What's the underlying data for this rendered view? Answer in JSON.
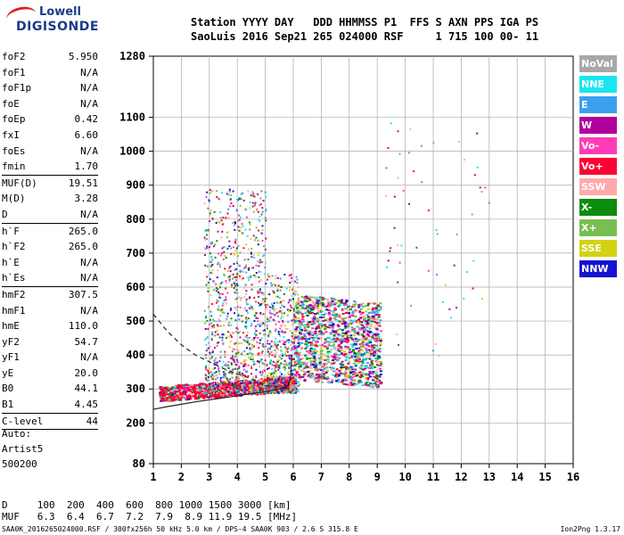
{
  "logo": {
    "line1": "Lowell",
    "line2": "DIGISONDE"
  },
  "header": {
    "row1": "Station YYYY DAY   DDD HHMMSS P1  FFS S AXN PPS IGA PS",
    "row2": "SaoLuis 2016 Sep21 265 024000 RSF     1 715 100 00- 11"
  },
  "params": [
    {
      "k": "foF2",
      "v": "5.950"
    },
    {
      "k": "foF1",
      "v": "N/A"
    },
    {
      "k": "foF1p",
      "v": "N/A"
    },
    {
      "k": "foE",
      "v": "N/A"
    },
    {
      "k": "foEp",
      "v": "0.42"
    },
    {
      "k": "fxI",
      "v": "6.60"
    },
    {
      "k": "foEs",
      "v": "N/A"
    },
    {
      "k": "fmin",
      "v": "1.70"
    },
    {
      "sep": true
    },
    {
      "k": "MUF(D)",
      "v": "19.51"
    },
    {
      "k": "M(D)",
      "v": "3.28"
    },
    {
      "k": "D",
      "v": "N/A"
    },
    {
      "sep": true
    },
    {
      "k": "h`F",
      "v": "265.0"
    },
    {
      "k": "h`F2",
      "v": "265.0"
    },
    {
      "k": "h`E",
      "v": "N/A"
    },
    {
      "k": "h`Es",
      "v": "N/A"
    },
    {
      "sep": true
    },
    {
      "k": "hmF2",
      "v": "307.5"
    },
    {
      "k": "hmF1",
      "v": "N/A"
    },
    {
      "k": "hmE",
      "v": "110.0"
    },
    {
      "k": "yF2",
      "v": "54.7"
    },
    {
      "k": "yF1",
      "v": "N/A"
    },
    {
      "k": "yE",
      "v": "20.0"
    },
    {
      "k": "B0",
      "v": "44.1"
    },
    {
      "k": "B1",
      "v": "4.45"
    },
    {
      "sep": true
    },
    {
      "k": "C-level",
      "v": "44"
    },
    {
      "sep": true
    }
  ],
  "auto": {
    "l1": "Auto:",
    "l2": "Artist5",
    "l3": "500200"
  },
  "legend": [
    {
      "label": "NoVal",
      "color": "#a8a8a8"
    },
    {
      "label": "NNE",
      "color": "#19e6f0"
    },
    {
      "label": "E",
      "color": "#3aa0f0"
    },
    {
      "label": "W",
      "color": "#b0009c"
    },
    {
      "label": "Vo-",
      "color": "#ff3cb4"
    },
    {
      "label": "Vo+",
      "color": "#ff0032"
    },
    {
      "label": "SSW",
      "color": "#ffaaaa"
    },
    {
      "label": "X-",
      "color": "#0c8c0c"
    },
    {
      "label": "X+",
      "color": "#78be50"
    },
    {
      "label": "SSE",
      "color": "#d2d214"
    },
    {
      "label": "NNW",
      "color": "#1414d2"
    }
  ],
  "table": {
    "row1": "D     100  200  400  600  800 1000 1500 3000 [km]",
    "row2": "MUF   6.3  6.4  6.7  7.2  7.9  8.9 11.9 19.5 [MHz]"
  },
  "footer": "SAA0K_2016265024000.RSF / 300fx256h 50 kHz 5.0 km / DPS-4 SAA0K 903 / 2.6 S 315.8 E",
  "version": "Ion2Png 1.3.17",
  "chart_data": {
    "type": "scatter",
    "x_ticks": [
      1,
      2,
      3,
      4,
      5,
      6,
      7,
      8,
      9,
      10,
      11,
      12,
      13,
      14,
      15,
      16
    ],
    "y_ticks": [
      80,
      200,
      300,
      400,
      500,
      600,
      700,
      800,
      900,
      1000,
      1100,
      1280
    ],
    "xlim": [
      1,
      16
    ],
    "ylim": [
      80,
      1280
    ],
    "grid": true,
    "trace_lines": [
      {
        "style": "solid",
        "x": [
          1.0,
          1.5,
          2.0,
          2.5,
          3.0,
          3.5,
          4.0,
          4.5,
          5.0,
          5.5,
          5.8,
          5.9,
          5.95
        ],
        "y": [
          240,
          248,
          255,
          262,
          268,
          274,
          280,
          286,
          292,
          300,
          310,
          330,
          400
        ]
      },
      {
        "style": "dashed",
        "x": [
          1.0,
          1.5,
          2.0,
          2.5,
          3.0,
          3.5,
          4.0,
          4.5,
          5.0,
          5.5,
          5.8,
          5.9
        ],
        "y": [
          520,
          470,
          430,
          400,
          380,
          360,
          345,
          330,
          310,
          305,
          300,
          330
        ]
      }
    ]
  }
}
